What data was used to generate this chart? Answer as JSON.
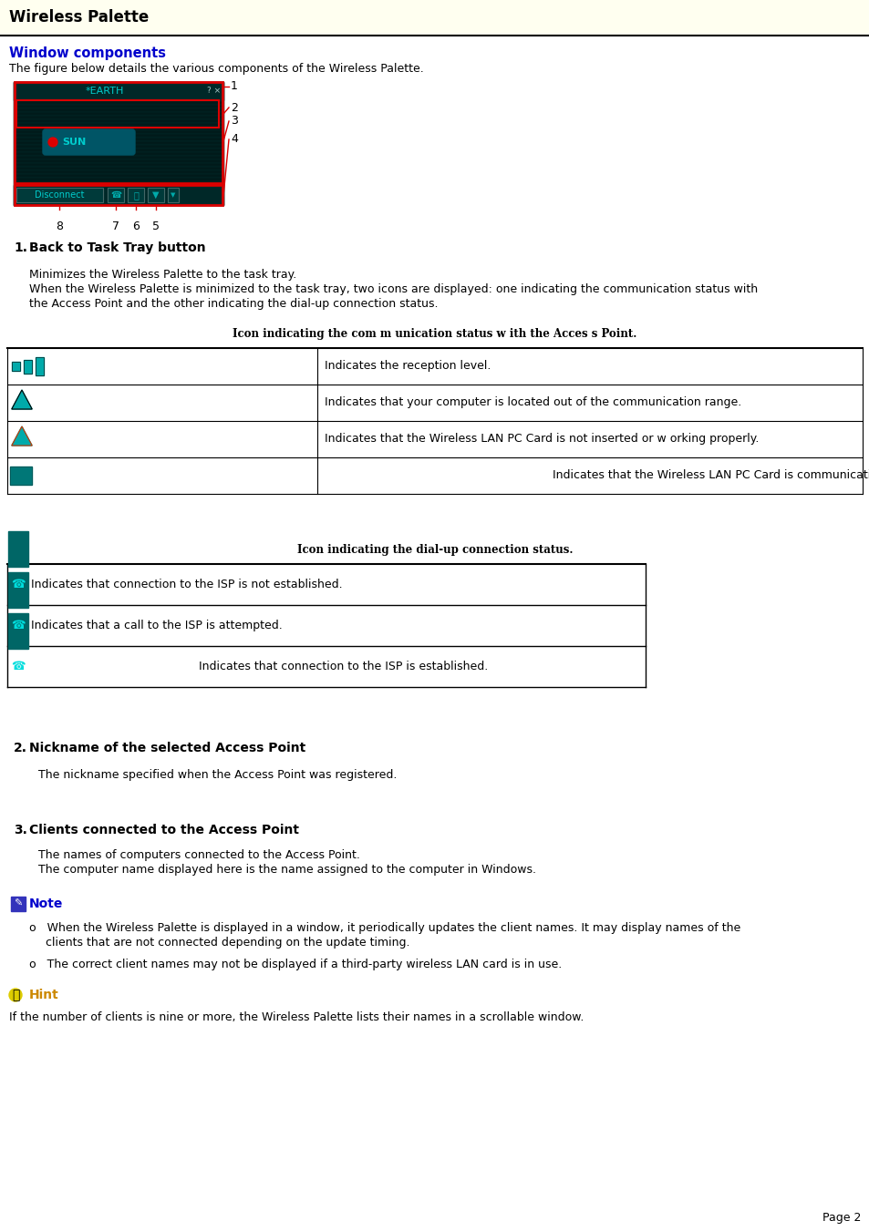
{
  "header_bg": "#fffff0",
  "header_text": "Wireless Palette",
  "section_color": "#0000cc",
  "section_title": "Window components",
  "item1_title": "Back to Task Tray button",
  "item2_title": "Nickname of the selected Access Point",
  "item3_title": "Clients connected to the Access Point",
  "note_title": "Note",
  "hint_title": "Hint",
  "teal": "#00aaaa",
  "diag_bg": "#001a1a",
  "diag_mid": "#003333",
  "red": "#cc0000"
}
